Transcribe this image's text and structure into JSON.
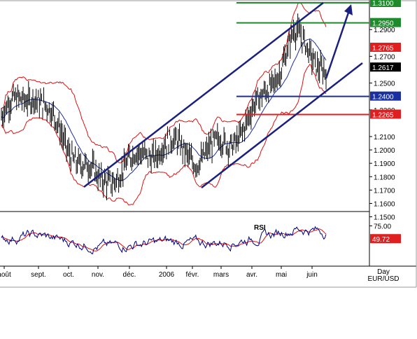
{
  "chart_data": [
    {
      "type": "candlestick",
      "instrument": "EUR/USD",
      "timeframe": "Day",
      "ylim": [
        1.155,
        1.31
      ],
      "yticks": [
        "1.2900",
        "1.2700",
        "1.2500",
        "1.2300",
        "1.2100",
        "1.2000",
        "1.1900",
        "1.1800",
        "1.1700",
        "1.1600",
        "1.1500"
      ],
      "xticks": [
        "août",
        "sept.",
        "oct.",
        "nov.",
        "déc.",
        "2006",
        "févr.",
        "mars",
        "avr.",
        "mai",
        "juin"
      ],
      "price_axis_note": "Day",
      "pair_label": "EUR/USD",
      "horizontal_levels": [
        {
          "value": 1.31,
          "label": "1.3100",
          "color": "#1f8a2b"
        },
        {
          "value": 1.295,
          "label": "1.2950",
          "color": "#1f8a2b"
        },
        {
          "value": 1.2765,
          "label": "1.2765",
          "color": "#e02020"
        },
        {
          "value": 1.2617,
          "label": "1.2617",
          "color": "#000000"
        },
        {
          "value": 1.24,
          "label": "1.2400",
          "color": "#1a2fa0"
        },
        {
          "value": 1.2265,
          "label": "1.2265",
          "color": "#e02020"
        }
      ],
      "trend_lines": "two ascending channel lines (Nov low to June high) and a projected up arrow toward 1.3100",
      "indicators": [
        "Bollinger Bands (red)",
        "Moving average (blue)"
      ],
      "series_sample": [
        {
          "x": "août",
          "close": 1.225
        },
        {
          "x": "sept.",
          "close": 1.245
        },
        {
          "x": "oct.",
          "close": 1.205
        },
        {
          "x": "nov.",
          "close": 1.175
        },
        {
          "x": "déc.",
          "close": 1.19
        },
        {
          "x": "2006",
          "close": 1.205
        },
        {
          "x": "févr.",
          "close": 1.195
        },
        {
          "x": "mars",
          "close": 1.205
        },
        {
          "x": "avr.",
          "close": 1.235
        },
        {
          "x": "mai",
          "close": 1.285
        },
        {
          "x": "juin",
          "close": 1.262
        }
      ]
    },
    {
      "type": "line",
      "indicator": "RSI",
      "title": "RSI",
      "ylim": [
        0,
        100
      ],
      "yticks": [
        "75.00"
      ],
      "current_value_label": "49.72",
      "series": [
        {
          "name": "RSI",
          "color": "#000080"
        },
        {
          "name": "RSI signal",
          "color": "#e02020"
        }
      ]
    }
  ]
}
